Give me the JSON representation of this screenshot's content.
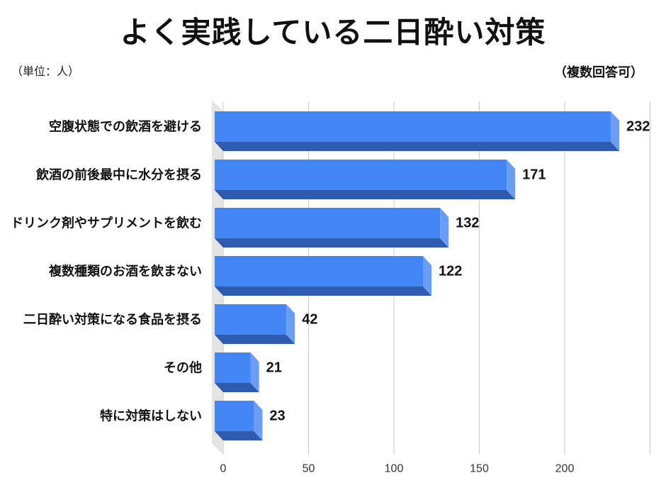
{
  "colors": {
    "background": "#ffffff",
    "bar_front": "#4285f4",
    "bar_side": "#6a9ef6",
    "bar_bottom": "#2d5bb0",
    "gridline": "#cccccc",
    "wall": "#e4e4e4",
    "text": "#111111"
  },
  "chart_data": {
    "type": "bar",
    "horizontal": true,
    "title": "よく実践している二日酔い対策",
    "unit_label": "（単位：人）",
    "annotation": "（複数回答可）",
    "categories": [
      "空腹状態での飲酒を避ける",
      "飲酒の前後最中に水分を摂る",
      "ドリンク剤やサプリメントを飲む",
      "複数種類のお酒を飲まない",
      "二日酔い対策になる食品を摂る",
      "その他",
      "特に対策はしない"
    ],
    "values": [
      232,
      171,
      132,
      122,
      42,
      21,
      23
    ],
    "xlabel": "",
    "ylabel": "",
    "xlim": [
      0,
      250
    ],
    "xticks": [
      0,
      50,
      100,
      150,
      200
    ],
    "gridlines": [
      0,
      50,
      100,
      150,
      200,
      250
    ],
    "grid": true,
    "data_labels": true
  }
}
